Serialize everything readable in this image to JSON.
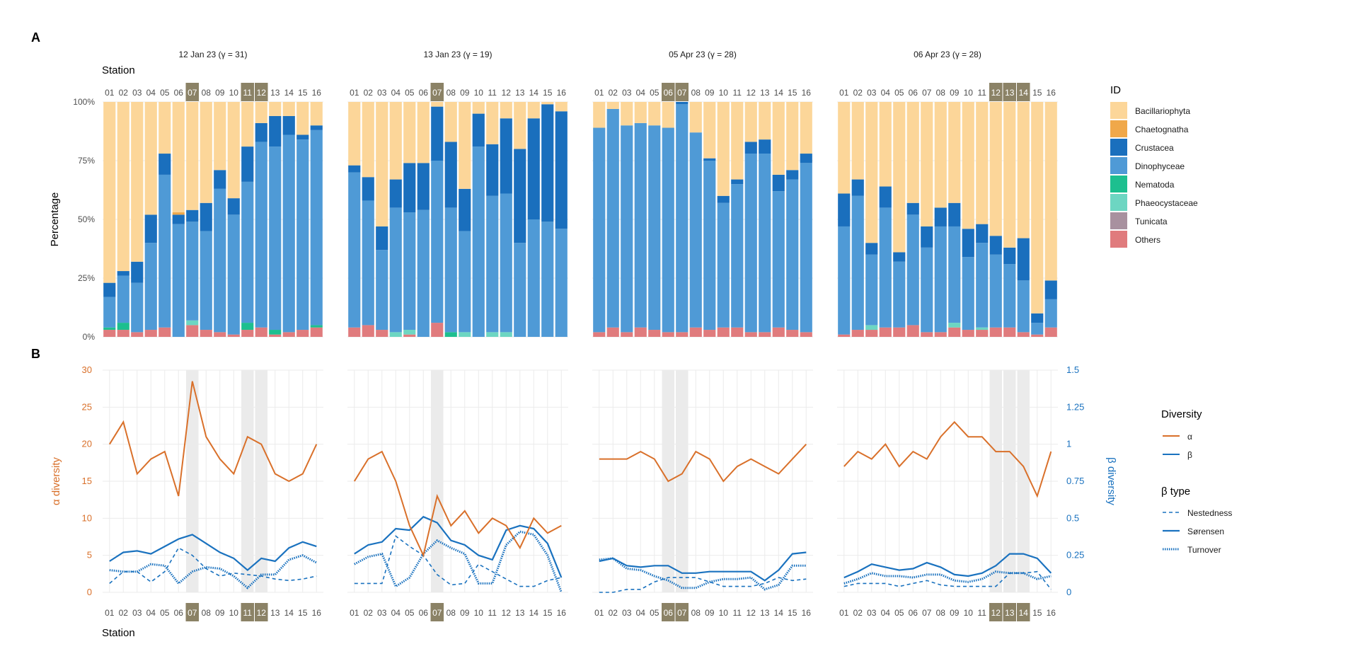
{
  "panel_labels": {
    "a": "A",
    "b": "B"
  },
  "station_label": "Station",
  "stations": [
    "01",
    "02",
    "03",
    "04",
    "05",
    "06",
    "07",
    "08",
    "09",
    "10",
    "11",
    "12",
    "13",
    "14",
    "15",
    "16"
  ],
  "facets": [
    {
      "title": "12 Jan 23 (γ = 31)",
      "highlight": [
        "07",
        "11",
        "12"
      ]
    },
    {
      "title": "13 Jan 23 (γ = 19)",
      "highlight": [
        "07"
      ]
    },
    {
      "title": "05 Apr 23 (γ = 28)",
      "highlight": [
        "06",
        "07"
      ]
    },
    {
      "title": "06 Apr 23 (γ = 28)",
      "highlight": [
        "12",
        "13",
        "14"
      ]
    }
  ],
  "colors": {
    "Bacillariophyta": "#fcd699",
    "Chaetognatha": "#f0a84a",
    "Crustacea": "#1a6fbd",
    "Dinophyceae": "#4f9ad6",
    "Nematoda": "#1dbf8f",
    "Phaeocystaceae": "#6dd6c2",
    "Tunicata": "#a8919f",
    "Others": "#e07b7d",
    "alpha": "#d9702a",
    "beta": "#1a72bf",
    "highlight_band": "#ebebeb",
    "highlight_badge": "#8b8266"
  },
  "chart_data": [
    {
      "type": "bar",
      "stacked": true,
      "ylabel": "Percentage",
      "yticks": [
        "0%",
        "25%",
        "50%",
        "75%",
        "100%"
      ],
      "ylim": [
        0,
        100
      ],
      "legend": {
        "title": "ID",
        "position": "right"
      },
      "series_order": [
        "Others",
        "Tunicata",
        "Phaeocystaceae",
        "Nematoda",
        "Dinophyceae",
        "Crustacea",
        "Chaetognatha",
        "Bacillariophyta"
      ],
      "facets": [
        {
          "data": [
            {
              "Others": 3,
              "Nematoda": 1,
              "Dinophyceae": 13,
              "Crustacea": 6
            },
            {
              "Others": 3,
              "Nematoda": 3,
              "Dinophyceae": 20,
              "Crustacea": 2
            },
            {
              "Others": 2,
              "Dinophyceae": 21,
              "Crustacea": 9
            },
            {
              "Others": 3,
              "Dinophyceae": 37,
              "Crustacea": 12
            },
            {
              "Others": 4,
              "Dinophyceae": 65,
              "Crustacea": 9
            },
            {
              "Dinophyceae": 48,
              "Crustacea": 4,
              "Chaetognatha": 1
            },
            {
              "Others": 5,
              "Phaeocystaceae": 2,
              "Dinophyceae": 42,
              "Crustacea": 5
            },
            {
              "Others": 3,
              "Dinophyceae": 42,
              "Crustacea": 12
            },
            {
              "Others": 2,
              "Dinophyceae": 61,
              "Crustacea": 8
            },
            {
              "Others": 1,
              "Dinophyceae": 51,
              "Crustacea": 7
            },
            {
              "Others": 3,
              "Nematoda": 3,
              "Dinophyceae": 60,
              "Crustacea": 15
            },
            {
              "Others": 4,
              "Dinophyceae": 79,
              "Crustacea": 8
            },
            {
              "Others": 1,
              "Nematoda": 2,
              "Dinophyceae": 78,
              "Crustacea": 13
            },
            {
              "Others": 2,
              "Dinophyceae": 84,
              "Crustacea": 8
            },
            {
              "Others": 3,
              "Dinophyceae": 81,
              "Crustacea": 2
            },
            {
              "Others": 4,
              "Nematoda": 1,
              "Dinophyceae": 83,
              "Crustacea": 2
            }
          ]
        },
        {
          "data": [
            {
              "Others": 4,
              "Dinophyceae": 66,
              "Crustacea": 3
            },
            {
              "Others": 5,
              "Dinophyceae": 53,
              "Crustacea": 10
            },
            {
              "Others": 3,
              "Dinophyceae": 34,
              "Crustacea": 10
            },
            {
              "Phaeocystaceae": 2,
              "Dinophyceae": 53,
              "Crustacea": 12
            },
            {
              "Others": 1,
              "Phaeocystaceae": 2,
              "Dinophyceae": 50,
              "Crustacea": 21
            },
            {
              "Dinophyceae": 54,
              "Crustacea": 20
            },
            {
              "Others": 6,
              "Dinophyceae": 69,
              "Crustacea": 23
            },
            {
              "Nematoda": 2,
              "Dinophyceae": 53,
              "Crustacea": 28
            },
            {
              "Phaeocystaceae": 2,
              "Dinophyceae": 43,
              "Crustacea": 18
            },
            {
              "Dinophyceae": 81,
              "Crustacea": 14
            },
            {
              "Phaeocystaceae": 2,
              "Dinophyceae": 58,
              "Crustacea": 22
            },
            {
              "Phaeocystaceae": 2,
              "Dinophyceae": 59,
              "Crustacea": 32
            },
            {
              "Dinophyceae": 40,
              "Crustacea": 40
            },
            {
              "Dinophyceae": 50,
              "Crustacea": 43
            },
            {
              "Dinophyceae": 49,
              "Crustacea": 50
            },
            {
              "Dinophyceae": 46,
              "Crustacea": 50
            }
          ]
        },
        {
          "data": [
            {
              "Others": 2,
              "Dinophyceae": 87
            },
            {
              "Others": 4,
              "Dinophyceae": 93
            },
            {
              "Others": 2,
              "Dinophyceae": 88
            },
            {
              "Others": 4,
              "Dinophyceae": 87
            },
            {
              "Others": 3,
              "Dinophyceae": 87
            },
            {
              "Others": 2,
              "Dinophyceae": 87
            },
            {
              "Others": 2,
              "Dinophyceae": 97,
              "Crustacea": 1
            },
            {
              "Others": 4,
              "Dinophyceae": 83
            },
            {
              "Others": 3,
              "Dinophyceae": 72,
              "Crustacea": 1
            },
            {
              "Others": 4,
              "Dinophyceae": 53,
              "Crustacea": 3
            },
            {
              "Others": 4,
              "Dinophyceae": 61,
              "Crustacea": 2
            },
            {
              "Others": 2,
              "Dinophyceae": 76,
              "Crustacea": 5
            },
            {
              "Others": 2,
              "Dinophyceae": 76,
              "Crustacea": 6
            },
            {
              "Others": 4,
              "Dinophyceae": 58,
              "Crustacea": 7
            },
            {
              "Others": 3,
              "Dinophyceae": 64,
              "Crustacea": 4
            },
            {
              "Others": 2,
              "Dinophyceae": 72,
              "Crustacea": 4
            }
          ]
        },
        {
          "data": [
            {
              "Others": 1,
              "Dinophyceae": 46,
              "Crustacea": 14
            },
            {
              "Others": 3,
              "Dinophyceae": 57,
              "Crustacea": 7
            },
            {
              "Others": 3,
              "Phaeocystaceae": 2,
              "Dinophyceae": 30,
              "Crustacea": 5
            },
            {
              "Others": 4,
              "Dinophyceae": 51,
              "Crustacea": 9
            },
            {
              "Others": 4,
              "Dinophyceae": 28,
              "Crustacea": 4
            },
            {
              "Others": 5,
              "Dinophyceae": 47,
              "Crustacea": 5
            },
            {
              "Others": 2,
              "Dinophyceae": 36,
              "Crustacea": 9
            },
            {
              "Others": 2,
              "Dinophyceae": 45,
              "Crustacea": 8
            },
            {
              "Others": 4,
              "Phaeocystaceae": 2,
              "Dinophyceae": 41,
              "Crustacea": 10
            },
            {
              "Others": 3,
              "Dinophyceae": 31,
              "Crustacea": 12
            },
            {
              "Others": 3,
              "Phaeocystaceae": 1,
              "Dinophyceae": 36,
              "Crustacea": 8
            },
            {
              "Others": 4,
              "Dinophyceae": 31,
              "Crustacea": 8
            },
            {
              "Others": 4,
              "Dinophyceae": 27,
              "Crustacea": 7
            },
            {
              "Others": 2,
              "Dinophyceae": 22,
              "Crustacea": 18
            },
            {
              "Others": 1,
              "Dinophyceae": 5,
              "Crustacea": 4
            },
            {
              "Others": 4,
              "Dinophyceae": 12,
              "Crustacea": 8
            }
          ]
        }
      ]
    },
    {
      "type": "line",
      "ylabel_left": "α diversity",
      "ylabel_right": "β diversity",
      "yticks_left": [
        0,
        5,
        10,
        15,
        20,
        25,
        30
      ],
      "yticks_right": [
        "0",
        "0.25",
        "0.5",
        "0.75",
        "1",
        "1.25",
        "1.5"
      ],
      "ylim_left": [
        0,
        30
      ],
      "ylim_right": [
        0,
        1.5
      ],
      "legend": {
        "diversity_title": "Diversity",
        "diversity_items": [
          "α",
          "β"
        ],
        "beta_type_title": "β type",
        "beta_type_items": [
          "Nestedness",
          "Sørensen",
          "Turnover"
        ],
        "position": "right"
      },
      "facets": [
        {
          "alpha": [
            20,
            23,
            16,
            18,
            19,
            13,
            28.5,
            21,
            18,
            16,
            21,
            20,
            16,
            15,
            16,
            20
          ],
          "sorensen": [
            0.21,
            0.27,
            0.28,
            0.26,
            0.31,
            0.36,
            0.39,
            0.33,
            0.27,
            0.23,
            0.15,
            0.23,
            0.21,
            0.3,
            0.34,
            0.31
          ],
          "nestedness": [
            0.06,
            0.14,
            0.14,
            0.07,
            0.14,
            0.3,
            0.25,
            0.16,
            0.11,
            0.13,
            0.12,
            0.11,
            0.09,
            0.08,
            0.09,
            0.11
          ],
          "turnover": [
            0.15,
            0.14,
            0.14,
            0.19,
            0.18,
            0.06,
            0.14,
            0.17,
            0.16,
            0.11,
            0.03,
            0.12,
            0.12,
            0.22,
            0.25,
            0.2
          ]
        },
        {
          "alpha": [
            15,
            18,
            19,
            15,
            9,
            5,
            13,
            9,
            11,
            8,
            10,
            9,
            6,
            10,
            8,
            9
          ],
          "sorensen": [
            0.26,
            0.32,
            0.34,
            0.43,
            0.42,
            0.51,
            0.47,
            0.35,
            0.32,
            0.25,
            0.22,
            0.42,
            0.45,
            0.43,
            0.33,
            0.1
          ],
          "nestedness": [
            0.06,
            0.06,
            0.06,
            0.38,
            0.31,
            0.25,
            0.12,
            0.05,
            0.06,
            0.19,
            0.14,
            0.09,
            0.04,
            0.04,
            0.08,
            0.1
          ],
          "turnover": [
            0.19,
            0.24,
            0.26,
            0.04,
            0.1,
            0.26,
            0.35,
            0.3,
            0.26,
            0.06,
            0.06,
            0.32,
            0.41,
            0.39,
            0.25,
            0.0
          ]
        },
        {
          "alpha": [
            18,
            18,
            18,
            19,
            18,
            15,
            16,
            19,
            18,
            15,
            17,
            18,
            17,
            16,
            18,
            20
          ],
          "sorensen": [
            0.21,
            0.23,
            0.18,
            0.17,
            0.18,
            0.18,
            0.13,
            0.13,
            0.14,
            0.14,
            0.14,
            0.14,
            0.08,
            0.15,
            0.26,
            0.27
          ],
          "nestedness": [
            0.0,
            0.0,
            0.02,
            0.02,
            0.07,
            0.1,
            0.1,
            0.1,
            0.07,
            0.04,
            0.04,
            0.04,
            0.06,
            0.1,
            0.08,
            0.09
          ],
          "turnover": [
            0.22,
            0.23,
            0.16,
            0.15,
            0.11,
            0.08,
            0.03,
            0.03,
            0.07,
            0.09,
            0.09,
            0.1,
            0.02,
            0.05,
            0.18,
            0.18
          ]
        },
        {
          "alpha": [
            17,
            19,
            18,
            20,
            17,
            19,
            18,
            21,
            23,
            21,
            21,
            19,
            19,
            17,
            13,
            19
          ],
          "sorensen": [
            0.1,
            0.14,
            0.19,
            0.17,
            0.15,
            0.16,
            0.2,
            0.17,
            0.12,
            0.11,
            0.13,
            0.18,
            0.26,
            0.26,
            0.23,
            0.13
          ],
          "nestedness": [
            0.04,
            0.06,
            0.06,
            0.06,
            0.04,
            0.06,
            0.08,
            0.05,
            0.04,
            0.04,
            0.04,
            0.04,
            0.13,
            0.13,
            0.14,
            0.02
          ],
          "turnover": [
            0.06,
            0.09,
            0.13,
            0.11,
            0.11,
            0.1,
            0.12,
            0.12,
            0.08,
            0.07,
            0.09,
            0.14,
            0.13,
            0.13,
            0.09,
            0.11
          ]
        }
      ]
    }
  ]
}
